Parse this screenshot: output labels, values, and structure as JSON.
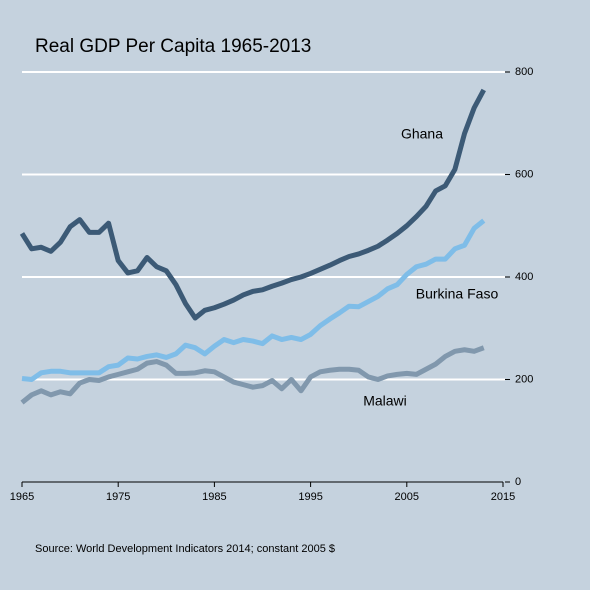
{
  "chart_data": {
    "type": "line",
    "title": "Real GDP Per Capita 1965-2013",
    "source": "Source: World Development Indicators 2014; constant 2005 $",
    "x": [
      1965,
      1966,
      1967,
      1968,
      1969,
      1970,
      1971,
      1972,
      1973,
      1974,
      1975,
      1976,
      1977,
      1978,
      1979,
      1980,
      1981,
      1982,
      1983,
      1984,
      1985,
      1986,
      1987,
      1988,
      1989,
      1990,
      1991,
      1992,
      1993,
      1994,
      1995,
      1996,
      1997,
      1998,
      1999,
      2000,
      2001,
      2002,
      2003,
      2004,
      2005,
      2006,
      2007,
      2008,
      2009,
      2010,
      2011,
      2012,
      2013
    ],
    "series": [
      {
        "name": "Ghana",
        "color": "#3c5a76",
        "values": [
          485,
          455,
          458,
          450,
          468,
          498,
          512,
          487,
          487,
          505,
          432,
          408,
          412,
          438,
          420,
          412,
          385,
          348,
          320,
          335,
          340,
          347,
          355,
          365,
          372,
          375,
          382,
          388,
          395,
          400,
          407,
          415,
          423,
          432,
          440,
          445,
          452,
          460,
          472,
          485,
          500,
          518,
          538,
          568,
          578,
          610,
          680,
          730,
          765
        ]
      },
      {
        "name": "Burkina Faso",
        "color": "#7fbde8",
        "values": [
          202,
          200,
          213,
          216,
          216,
          213,
          213,
          213,
          213,
          225,
          228,
          242,
          240,
          245,
          248,
          243,
          250,
          267,
          262,
          250,
          265,
          278,
          272,
          278,
          275,
          270,
          285,
          278,
          282,
          278,
          288,
          305,
          318,
          330,
          343,
          342,
          352,
          362,
          377,
          385,
          405,
          420,
          425,
          435,
          435,
          455,
          462,
          495,
          510
        ]
      },
      {
        "name": "Malawi",
        "color": "#8198ad",
        "values": [
          155,
          170,
          178,
          170,
          176,
          172,
          193,
          200,
          198,
          205,
          210,
          215,
          220,
          232,
          235,
          228,
          212,
          212,
          213,
          217,
          215,
          205,
          195,
          190,
          185,
          188,
          198,
          182,
          200,
          178,
          205,
          215,
          218,
          220,
          220,
          218,
          205,
          200,
          207,
          210,
          212,
          210,
          220,
          230,
          245,
          255,
          258,
          255,
          262
        ]
      }
    ],
    "xlim": [
      1965,
      2015
    ],
    "xticks": [
      1965,
      1975,
      1985,
      1995,
      2005,
      2015
    ],
    "ylim": [
      0,
      800
    ],
    "yticks": [
      0,
      200,
      400,
      600,
      800
    ],
    "grid": true
  }
}
